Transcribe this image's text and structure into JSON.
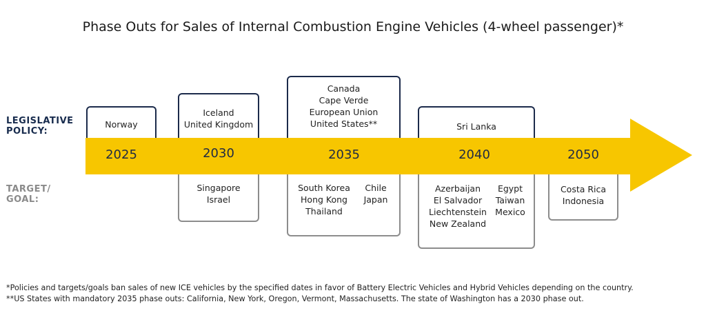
{
  "title": "Phase Outs for Sales of Internal Combustion Engine Vehicles (4-wheel passenger)*",
  "row_labels": {
    "legislative": [
      "LEGISLATIVE",
      "POLICY:"
    ],
    "target": [
      "TARGET/",
      "GOAL:"
    ]
  },
  "colors": {
    "arrow": "#f7c600",
    "legislative_border": "#1b2a4a",
    "target_border": "#8c8c8c"
  },
  "years": [
    "2025",
    "2030",
    "2035",
    "2040",
    "2050"
  ],
  "legislative": [
    {
      "year": "2025",
      "countries": [
        "Norway"
      ]
    },
    {
      "year": "2030",
      "countries": [
        "Iceland",
        "United Kingdom"
      ]
    },
    {
      "year": "2035",
      "countries": [
        "Canada",
        "Cape Verde",
        "European Union",
        "United States**"
      ]
    },
    {
      "year": "2040",
      "countries": [
        "Sri Lanka"
      ]
    }
  ],
  "targets": [
    {
      "year": "2030",
      "columns": [
        [
          "Singapore",
          "Israel"
        ]
      ]
    },
    {
      "year": "2035",
      "columns": [
        [
          "South Korea",
          "Hong Kong",
          "Thailand"
        ],
        [
          "Chile",
          "Japan"
        ]
      ]
    },
    {
      "year": "2040",
      "columns": [
        [
          "Azerbaijan",
          "El Salvador",
          "Liechtenstein",
          "New Zealand"
        ],
        [
          "Egypt",
          "Taiwan",
          "Mexico"
        ]
      ]
    },
    {
      "year": "2050",
      "columns": [
        [
          "Costa Rica",
          "Indonesia"
        ]
      ]
    }
  ],
  "footnotes": [
    "*Policies and targets/goals ban sales of new ICE vehicles by the specified dates in favor of Battery Electric Vehicles and Hybrid Vehicles depending on the country.",
    "**US States with mandatory 2035 phase outs: California, New York, Oregon, Vermont, Massachusetts. The state of Washington has a 2030 phase out."
  ]
}
